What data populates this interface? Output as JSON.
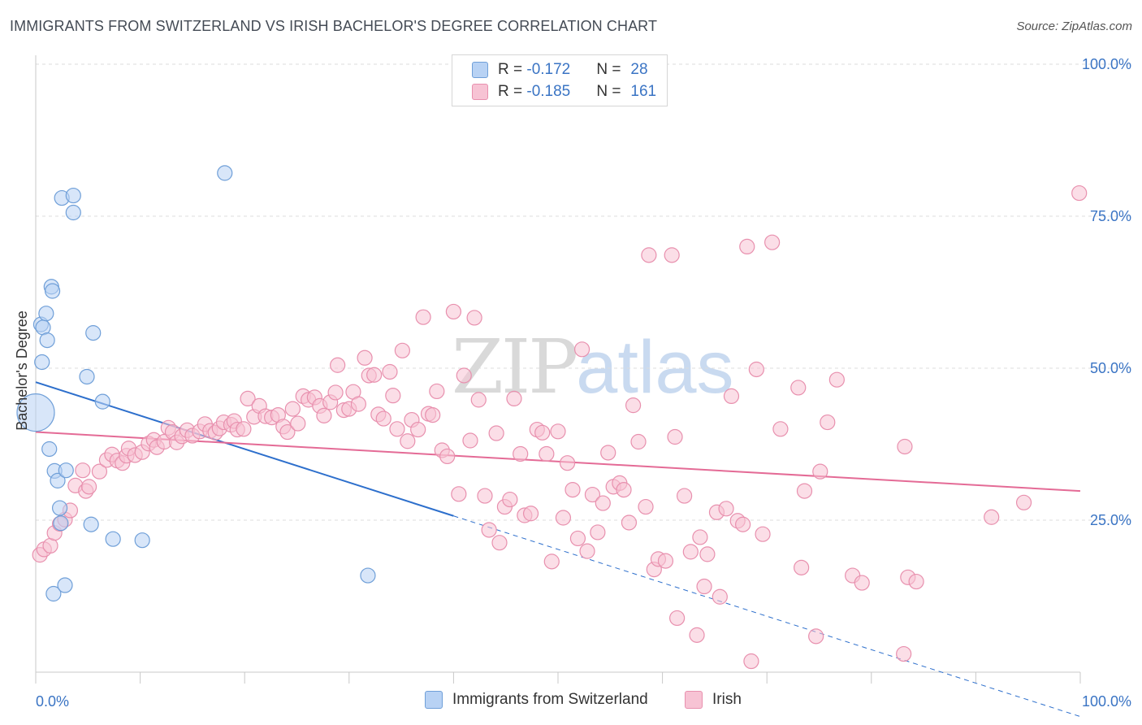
{
  "title": "IMMIGRANTS FROM SWITZERLAND VS IRISH BACHELOR'S DEGREE CORRELATION CHART",
  "source": "Source: ZipAtlas.com",
  "watermark": {
    "part1": "ZIP",
    "part2": "atlas"
  },
  "colors": {
    "blue_fill": "#b8d2f4",
    "blue_stroke": "#6f9fd8",
    "blue_line": "#2d6fcc",
    "pink_fill": "#f7c3d4",
    "pink_stroke": "#e890ae",
    "pink_line": "#e46b96",
    "tick_text": "#3a74c4"
  },
  "legend": {
    "rows": [
      {
        "r_label": "R = ",
        "r_value": "-0.172",
        "n_label": "N = ",
        "n_value": "28"
      },
      {
        "r_label": "R = ",
        "r_value": "-0.185",
        "n_label": "N = ",
        "n_value": "161"
      }
    ]
  },
  "bottom_legend": {
    "series1": "Immigrants from Switzerland",
    "series2": "Irish"
  },
  "chart_data": {
    "type": "scatter",
    "xlabel": "",
    "ylabel": "Bachelor's Degree",
    "xlim": [
      0,
      100
    ],
    "ylim": [
      0,
      100
    ],
    "x_tick_labels": [
      "0.0%",
      "100.0%"
    ],
    "y_tick_labels": [
      "25.0%",
      "50.0%",
      "75.0%",
      "100.0%"
    ],
    "y_ticks": [
      25,
      50,
      75,
      100
    ],
    "grid": true,
    "legend_position": "top-center",
    "series": [
      {
        "name": "Immigrants from Switzerland",
        "r": -0.172,
        "n": 28,
        "trend": {
          "x0": 0,
          "y0": 47.7,
          "x1": 40,
          "y1": 25.7,
          "dash_to_x": 100
        },
        "points": [
          [
            0.0,
            42.7,
            3
          ],
          [
            0.5,
            57.2,
            1
          ],
          [
            0.6,
            51.0,
            1
          ],
          [
            0.7,
            56.7,
            1
          ],
          [
            1.0,
            59.0,
            1
          ],
          [
            1.1,
            54.6,
            1
          ],
          [
            1.3,
            36.7,
            1
          ],
          [
            1.5,
            63.4,
            1
          ],
          [
            1.6,
            62.7,
            1
          ],
          [
            1.7,
            12.9,
            1
          ],
          [
            1.8,
            33.1,
            1
          ],
          [
            2.1,
            31.5,
            1
          ],
          [
            2.3,
            27.0,
            1
          ],
          [
            2.4,
            24.5,
            1
          ],
          [
            2.5,
            78.0,
            1
          ],
          [
            2.8,
            14.3,
            1
          ],
          [
            2.9,
            33.2,
            1
          ],
          [
            3.6,
            78.4,
            1
          ],
          [
            3.6,
            75.6,
            1
          ],
          [
            4.9,
            48.6,
            1
          ],
          [
            5.3,
            24.3,
            1
          ],
          [
            5.5,
            55.8,
            1
          ],
          [
            6.4,
            44.5,
            1
          ],
          [
            7.4,
            21.9,
            1
          ],
          [
            10.2,
            21.7,
            1
          ],
          [
            18.1,
            82.1,
            1
          ],
          [
            31.8,
            15.9,
            1
          ]
        ]
      },
      {
        "name": "Irish",
        "r": -0.185,
        "n": 161,
        "trend": {
          "x0": 0,
          "y0": 39.5,
          "x1": 100,
          "y1": 29.8
        },
        "points": [
          [
            0.4,
            19.3,
            1
          ],
          [
            0.8,
            20.2,
            1
          ],
          [
            1.4,
            20.8,
            1
          ],
          [
            1.8,
            22.9,
            1
          ],
          [
            2.3,
            24.4,
            1
          ],
          [
            2.8,
            25.1,
            1
          ],
          [
            3.3,
            26.6,
            1
          ],
          [
            3.8,
            30.7,
            1
          ],
          [
            4.5,
            33.2,
            1
          ],
          [
            4.8,
            29.8,
            1
          ],
          [
            5.1,
            30.5,
            1
          ],
          [
            6.1,
            33.0,
            1
          ],
          [
            6.8,
            34.9,
            1
          ],
          [
            7.3,
            35.8,
            1
          ],
          [
            7.8,
            34.8,
            1
          ],
          [
            8.3,
            34.4,
            1
          ],
          [
            8.7,
            35.6,
            1
          ],
          [
            8.9,
            36.8,
            1
          ],
          [
            9.5,
            35.7,
            1
          ],
          [
            10.2,
            36.2,
            1
          ],
          [
            10.8,
            37.6,
            1
          ],
          [
            11.3,
            38.2,
            1
          ],
          [
            11.6,
            37.0,
            1
          ],
          [
            12.3,
            37.9,
            1
          ],
          [
            12.7,
            40.2,
            1
          ],
          [
            13.1,
            39.5,
            1
          ],
          [
            13.5,
            37.8,
            1
          ],
          [
            14.0,
            38.8,
            1
          ],
          [
            14.5,
            39.8,
            1
          ],
          [
            15.0,
            38.9,
            1
          ],
          [
            15.7,
            39.6,
            1
          ],
          [
            16.2,
            40.8,
            1
          ],
          [
            16.7,
            39.7,
            1
          ],
          [
            17.2,
            39.4,
            1
          ],
          [
            17.6,
            40.1,
            1
          ],
          [
            18.0,
            41.1,
            1
          ],
          [
            18.7,
            40.7,
            1
          ],
          [
            19.0,
            41.3,
            1
          ],
          [
            19.3,
            39.9,
            1
          ],
          [
            19.9,
            40.0,
            1
          ],
          [
            20.3,
            45.0,
            1
          ],
          [
            20.9,
            42.0,
            1
          ],
          [
            21.4,
            43.8,
            1
          ],
          [
            22.0,
            42.1,
            1
          ],
          [
            22.6,
            41.9,
            1
          ],
          [
            23.2,
            42.3,
            1
          ],
          [
            23.7,
            40.4,
            1
          ],
          [
            24.1,
            39.5,
            1
          ],
          [
            24.6,
            43.3,
            1
          ],
          [
            25.1,
            40.9,
            1
          ],
          [
            25.6,
            45.4,
            1
          ],
          [
            26.1,
            44.8,
            1
          ],
          [
            26.7,
            45.2,
            1
          ],
          [
            27.2,
            43.8,
            1
          ],
          [
            27.6,
            42.2,
            1
          ],
          [
            28.2,
            44.4,
            1
          ],
          [
            28.7,
            46.0,
            1
          ],
          [
            28.9,
            50.5,
            1
          ],
          [
            29.5,
            43.1,
            1
          ],
          [
            30.0,
            43.3,
            1
          ],
          [
            30.4,
            46.1,
            1
          ],
          [
            30.9,
            44.1,
            1
          ],
          [
            31.5,
            51.7,
            1
          ],
          [
            31.9,
            48.8,
            1
          ],
          [
            32.4,
            48.9,
            1
          ],
          [
            32.8,
            42.4,
            1
          ],
          [
            33.3,
            41.7,
            1
          ],
          [
            33.9,
            49.4,
            1
          ],
          [
            34.2,
            45.5,
            1
          ],
          [
            34.6,
            40.0,
            1
          ],
          [
            35.1,
            52.9,
            1
          ],
          [
            35.6,
            38.0,
            1
          ],
          [
            36.0,
            41.5,
            1
          ],
          [
            36.6,
            39.9,
            1
          ],
          [
            37.1,
            58.4,
            1
          ],
          [
            37.6,
            42.5,
            1
          ],
          [
            38.0,
            42.3,
            1
          ],
          [
            38.4,
            46.2,
            1
          ],
          [
            38.9,
            36.5,
            1
          ],
          [
            39.4,
            35.5,
            1
          ],
          [
            40.0,
            59.3,
            1
          ],
          [
            40.5,
            29.3,
            1
          ],
          [
            41.0,
            48.8,
            1
          ],
          [
            41.6,
            38.1,
            1
          ],
          [
            42.0,
            58.3,
            1
          ],
          [
            42.4,
            44.8,
            1
          ],
          [
            43.0,
            29.0,
            1
          ],
          [
            43.4,
            23.4,
            1
          ],
          [
            44.1,
            39.3,
            1
          ],
          [
            44.4,
            21.3,
            1
          ],
          [
            44.9,
            27.2,
            1
          ],
          [
            45.4,
            28.4,
            1
          ],
          [
            45.8,
            45.0,
            1
          ],
          [
            46.4,
            35.9,
            1
          ],
          [
            46.8,
            25.8,
            1
          ],
          [
            47.4,
            26.1,
            1
          ],
          [
            48.0,
            39.9,
            1
          ],
          [
            48.5,
            39.4,
            1
          ],
          [
            48.9,
            35.9,
            1
          ],
          [
            49.4,
            18.2,
            1
          ],
          [
            50.0,
            39.6,
            1
          ],
          [
            50.5,
            25.4,
            1
          ],
          [
            50.9,
            34.4,
            1
          ],
          [
            51.4,
            30.0,
            1
          ],
          [
            51.9,
            22.0,
            1
          ],
          [
            52.3,
            53.1,
            1
          ],
          [
            52.8,
            19.9,
            1
          ],
          [
            53.3,
            29.2,
            1
          ],
          [
            53.8,
            23.0,
            1
          ],
          [
            54.3,
            27.8,
            1
          ],
          [
            54.8,
            36.1,
            1
          ],
          [
            55.3,
            30.5,
            1
          ],
          [
            55.9,
            31.1,
            1
          ],
          [
            56.3,
            30.0,
            1
          ],
          [
            56.8,
            24.6,
            1
          ],
          [
            57.2,
            43.9,
            1
          ],
          [
            57.7,
            37.9,
            1
          ],
          [
            58.4,
            27.2,
            1
          ],
          [
            58.7,
            68.6,
            1
          ],
          [
            59.2,
            16.9,
            1
          ],
          [
            59.6,
            18.6,
            1
          ],
          [
            60.3,
            18.3,
            1
          ],
          [
            60.9,
            68.6,
            1
          ],
          [
            61.2,
            38.7,
            1
          ],
          [
            61.4,
            8.9,
            1
          ],
          [
            62.1,
            29.0,
            1
          ],
          [
            62.7,
            19.8,
            1
          ],
          [
            63.3,
            6.1,
            1
          ],
          [
            63.6,
            22.2,
            1
          ],
          [
            64.0,
            14.1,
            1
          ],
          [
            64.3,
            19.4,
            1
          ],
          [
            65.2,
            26.3,
            1
          ],
          [
            65.5,
            12.4,
            1
          ],
          [
            66.1,
            26.9,
            1
          ],
          [
            66.6,
            45.4,
            1
          ],
          [
            67.2,
            24.9,
            1
          ],
          [
            67.7,
            24.3,
            1
          ],
          [
            68.1,
            70.0,
            1
          ],
          [
            68.5,
            1.8,
            1
          ],
          [
            69.0,
            49.8,
            1
          ],
          [
            69.6,
            22.7,
            1
          ],
          [
            70.5,
            70.7,
            1
          ],
          [
            71.3,
            40.0,
            1
          ],
          [
            73.0,
            46.8,
            1
          ],
          [
            73.3,
            17.2,
            1
          ],
          [
            73.6,
            29.8,
            1
          ],
          [
            74.7,
            5.9,
            1
          ],
          [
            75.1,
            33.0,
            1
          ],
          [
            75.8,
            41.1,
            1
          ],
          [
            76.7,
            48.1,
            1
          ],
          [
            78.2,
            15.9,
            1
          ],
          [
            79.1,
            14.7,
            1
          ],
          [
            83.2,
            37.1,
            1
          ],
          [
            83.5,
            15.6,
            1
          ],
          [
            84.3,
            14.9,
            1
          ],
          [
            83.1,
            3.0,
            1
          ],
          [
            91.5,
            25.5,
            1
          ],
          [
            94.6,
            27.9,
            1
          ],
          [
            99.9,
            78.8,
            1
          ]
        ]
      }
    ]
  }
}
